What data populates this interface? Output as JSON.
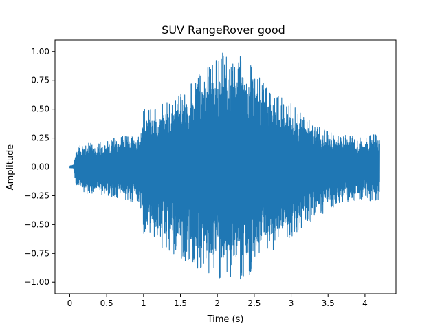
{
  "chart_data": {
    "type": "line",
    "title": "SUV RangeRover good",
    "xlabel": "Time (s)",
    "ylabel": "Amplitude",
    "xlim": [
      -0.2,
      4.42
    ],
    "ylim": [
      -1.1,
      1.1
    ],
    "x_ticks": [
      0,
      0.5,
      1,
      1.5,
      2,
      2.5,
      3,
      3.5,
      4
    ],
    "x_tick_labels": [
      "0",
      "0.5",
      "1",
      "1.5",
      "2",
      "2.5",
      "3",
      "3.5",
      "4"
    ],
    "y_ticks": [
      -1.0,
      -0.75,
      -0.5,
      -0.25,
      0.0,
      0.25,
      0.5,
      0.75,
      1.0
    ],
    "y_tick_labels": [
      "−1.00",
      "−0.75",
      "−0.50",
      "−0.25",
      "0.00",
      "0.25",
      "0.50",
      "0.75",
      "1.00"
    ],
    "grid": false,
    "legend": "none",
    "series": [
      {
        "color": "#1f77b4",
        "duration_s": 4.2,
        "envelope": {
          "t": [
            0.0,
            0.05,
            0.07,
            0.1,
            0.2,
            0.4,
            0.6,
            0.8,
            0.95,
            1.0,
            1.2,
            1.4,
            1.6,
            1.8,
            2.0,
            2.1,
            2.2,
            2.3,
            2.4,
            2.5,
            2.6,
            2.8,
            3.0,
            3.2,
            3.4,
            3.6,
            3.8,
            4.0,
            4.1,
            4.2
          ],
          "upper": [
            0.01,
            0.02,
            0.1,
            0.18,
            0.2,
            0.22,
            0.25,
            0.28,
            0.3,
            0.5,
            0.55,
            0.6,
            0.7,
            0.85,
            0.95,
            1.02,
            0.9,
            1.0,
            0.92,
            0.85,
            0.75,
            0.65,
            0.55,
            0.45,
            0.35,
            0.3,
            0.27,
            0.25,
            0.3,
            0.3
          ],
          "lower": [
            -0.01,
            -0.02,
            -0.1,
            -0.2,
            -0.23,
            -0.25,
            -0.27,
            -0.3,
            -0.32,
            -0.6,
            -0.7,
            -0.75,
            -0.85,
            -0.9,
            -0.98,
            -1.0,
            -0.95,
            -1.02,
            -0.97,
            -0.9,
            -0.8,
            -0.7,
            -0.62,
            -0.5,
            -0.42,
            -0.35,
            -0.3,
            -0.28,
            -0.3,
            -0.28
          ]
        }
      }
    ]
  }
}
